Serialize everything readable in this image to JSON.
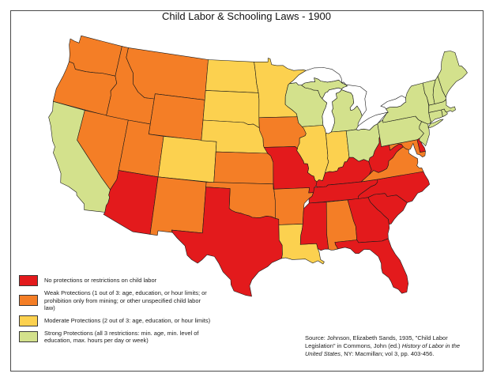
{
  "title": "Child Labor & Schooling Laws - 1900",
  "legend": {
    "items": [
      {
        "id": "none",
        "color": "#E31A1C",
        "label": "No protections or restrictions on child labor"
      },
      {
        "id": "weak",
        "color": "#F47E26",
        "label": "Weak Protections (1 out of 3: age, education, or hour limits; or prohibition only from mining; or other unspecified child labor law)"
      },
      {
        "id": "moderate",
        "color": "#FCD14F",
        "label": "Moderate Protections (2 out of 3: age, education, or hour limits)"
      },
      {
        "id": "strong",
        "color": "#D3E18C",
        "label": "Strong Protections (all 3 restrictions: min. age, min. level of education, max. hours per day or week)"
      }
    ]
  },
  "source": {
    "prefix": "Source: Johnson, Elizabeth Sands, 1935, \"Child Labor Legislation\" in Commons, John (ed.) ",
    "italic_title": "History of Labor in the United States",
    "suffix": ", NY: Macmillan; vol 3, pp. 403-456."
  },
  "chart_data": {
    "type": "choropleth_map",
    "title": "Child Labor & Schooling Laws - 1900",
    "region": "United States, contiguous 48 states",
    "legend_position": "bottom-left",
    "categories": [
      {
        "id": "none",
        "label": "No protections or restrictions on child labor",
        "color": "#E31A1C"
      },
      {
        "id": "weak",
        "label": "Weak Protections (1 out of 3: age, education, or hour limits; or prohibition only from mining; or other unspecified child labor law)",
        "color": "#F47E26"
      },
      {
        "id": "moderate",
        "label": "Moderate Protections (2 out of 3: age, education, or hour limits)",
        "color": "#FCD14F"
      },
      {
        "id": "strong",
        "label": "Strong Protections (all 3 restrictions: min. age, min. level of education, max. hours per day or week)",
        "color": "#D3E18C"
      }
    ],
    "state_categories": {
      "WA": "weak",
      "OR": "weak",
      "CA": "strong",
      "NV": "weak",
      "ID": "weak",
      "MT": "weak",
      "WY": "weak",
      "UT": "weak",
      "CO": "moderate",
      "AZ": "none",
      "NM": "weak",
      "ND": "moderate",
      "SD": "moderate",
      "NE": "moderate",
      "KS": "weak",
      "OK": "weak",
      "TX": "none",
      "MN": "moderate",
      "IA": "weak",
      "MO": "none",
      "AR": "weak",
      "LA": "moderate",
      "WI": "strong",
      "MI": "strong",
      "IL": "moderate",
      "IN": "moderate",
      "OH": "strong",
      "KY": "none",
      "TN": "none",
      "MS": "none",
      "AL": "weak",
      "GA": "none",
      "FL": "none",
      "SC": "none",
      "NC": "none",
      "VA": "weak",
      "WV": "none",
      "MD": "weak",
      "DE": "none",
      "PA": "strong",
      "NJ": "strong",
      "NY": "strong",
      "CT": "strong",
      "RI": "strong",
      "MA": "strong",
      "VT": "strong",
      "NH": "strong",
      "ME": "strong"
    }
  },
  "colors": {
    "background": "#ffffff",
    "frame_border": "#4a4a4a",
    "state_outline": "#1a1a1a",
    "lake_fill": "#ffffff",
    "text": "#111111"
  }
}
